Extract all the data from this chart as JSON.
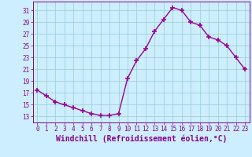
{
  "x": [
    0,
    1,
    2,
    3,
    4,
    5,
    6,
    7,
    8,
    9,
    10,
    11,
    12,
    13,
    14,
    15,
    16,
    17,
    18,
    19,
    20,
    21,
    22,
    23
  ],
  "y": [
    17.5,
    16.5,
    15.5,
    15.0,
    14.5,
    14.0,
    13.5,
    13.2,
    13.2,
    13.5,
    19.5,
    22.5,
    24.5,
    27.5,
    29.5,
    31.5,
    31.0,
    29.0,
    28.5,
    26.5,
    26.0,
    25.0,
    23.0,
    21.0
  ],
  "line_color": "#990099",
  "marker": "+",
  "markersize": 4,
  "markeredgewidth": 1.2,
  "linewidth": 1.0,
  "bg_color": "#cceeff",
  "grid_color": "#99cccc",
  "xlabel": "Windchill (Refroidissement éolien,°C)",
  "ylim": [
    12,
    32.5
  ],
  "yticks": [
    13,
    15,
    17,
    19,
    21,
    23,
    25,
    27,
    29,
    31
  ],
  "xlim": [
    -0.5,
    23.5
  ],
  "xticks": [
    0,
    1,
    2,
    3,
    4,
    5,
    6,
    7,
    8,
    9,
    10,
    11,
    12,
    13,
    14,
    15,
    16,
    17,
    18,
    19,
    20,
    21,
    22,
    23
  ],
  "tick_fontsize": 5.5,
  "label_fontsize": 7.0,
  "tick_color": "#880088",
  "label_color": "#880088",
  "spine_color": "#880088"
}
